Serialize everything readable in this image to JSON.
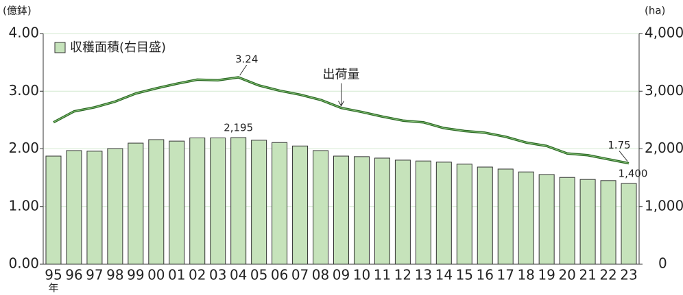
{
  "chart_data": {
    "type": "bar+line",
    "y_label": "(億鉢)",
    "y2_label": "(ha)",
    "x_unit": "年",
    "categories": [
      "95",
      "96",
      "97",
      "98",
      "99",
      "00",
      "01",
      "02",
      "03",
      "04",
      "05",
      "06",
      "07",
      "08",
      "09",
      "10",
      "11",
      "12",
      "13",
      "14",
      "15",
      "16",
      "17",
      "18",
      "19",
      "20",
      "21",
      "22",
      "23"
    ],
    "series": [
      {
        "name": "収穫面積(右目盛)",
        "type": "bar",
        "axis": "y2",
        "color": "#c6e3bb",
        "values": [
          1875,
          1970,
          1960,
          2005,
          2100,
          2160,
          2135,
          2190,
          2190,
          2195,
          2150,
          2110,
          2050,
          1970,
          1875,
          1865,
          1840,
          1805,
          1790,
          1770,
          1735,
          1685,
          1650,
          1600,
          1555,
          1505,
          1470,
          1450,
          1400
        ],
        "value_labels": [
          null,
          null,
          null,
          null,
          null,
          null,
          null,
          null,
          null,
          "2,195",
          null,
          null,
          null,
          null,
          null,
          null,
          null,
          null,
          null,
          null,
          null,
          null,
          null,
          null,
          null,
          null,
          null,
          null,
          "1,400"
        ]
      },
      {
        "name": "出荷量",
        "type": "line",
        "color": "#2d6a27",
        "values": [
          2.46,
          2.65,
          2.72,
          2.82,
          2.96,
          3.05,
          3.13,
          3.2,
          3.19,
          3.24,
          3.1,
          3.01,
          2.94,
          2.85,
          2.71,
          2.64,
          2.56,
          2.49,
          2.46,
          2.36,
          2.31,
          2.28,
          2.21,
          2.11,
          2.05,
          1.92,
          1.89,
          1.82,
          1.75
        ],
        "value_labels": [
          null,
          null,
          null,
          null,
          null,
          null,
          null,
          null,
          null,
          "3.24",
          null,
          null,
          null,
          null,
          null,
          null,
          null,
          null,
          null,
          null,
          null,
          null,
          null,
          null,
          null,
          null,
          null,
          null,
          "1.75"
        ]
      }
    ],
    "ylim": [
      0,
      4
    ],
    "yticks": [
      {
        "value": 0,
        "label": "0.00"
      },
      {
        "value": 1,
        "label": "1.00"
      },
      {
        "value": 2,
        "label": "2.00"
      },
      {
        "value": 3,
        "label": "3.00"
      },
      {
        "value": 4,
        "label": "4.00"
      }
    ],
    "y2lim": [
      0,
      4000
    ],
    "y2ticks": [
      0,
      {
        "value": 1000,
        "label": "1,000"
      },
      {
        "value": 2000,
        "label": "2,000"
      },
      {
        "value": 3000,
        "label": "3,000"
      },
      {
        "value": 4000,
        "label": "4,000"
      }
    ],
    "grid": true,
    "grid_color": "#d4ead0",
    "legend": "upper left"
  }
}
